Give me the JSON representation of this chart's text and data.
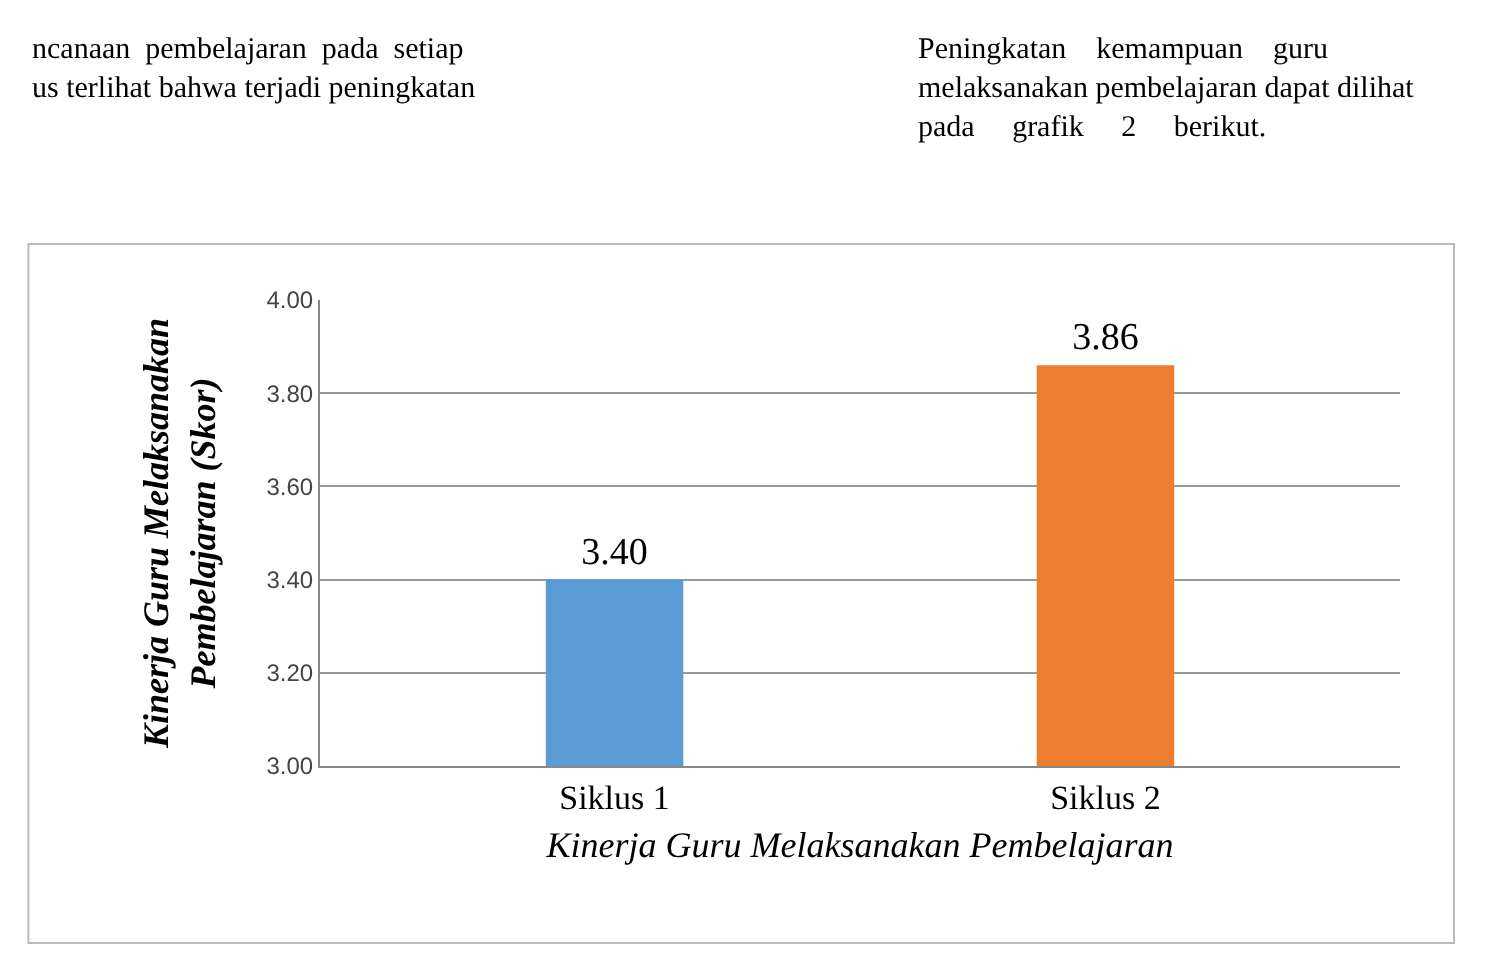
{
  "chart_data": {
    "type": "bar",
    "categories": [
      "Siklus 1",
      "Siklus 2"
    ],
    "values": [
      3.4,
      3.86
    ],
    "colors": [
      "#5b9bd5",
      "#ed7d31"
    ],
    "value_labels": [
      "3.40",
      "3.86"
    ],
    "ylim": [
      3.0,
      4.0
    ],
    "yticks": [
      "3.00",
      "3.20",
      "3.40",
      "3.60",
      "3.80",
      "4.00"
    ],
    "grid": "y",
    "xlabel": "Kinerja Guru Melaksanakan Pembelajaran",
    "ylabel": "Kinerja Guru Melaksanakan\nPembelajaran (Skor)",
    "annotations": [
      "ncanaan  pembelajaran  pada  setiap\nus terlihat bahwa terjadi peningkatan",
      "Peningkatan    kemampuan    guru\nmelaksanakan pembelajaran dapat dilihat\npada     grafik     2     berikut."
    ]
  }
}
